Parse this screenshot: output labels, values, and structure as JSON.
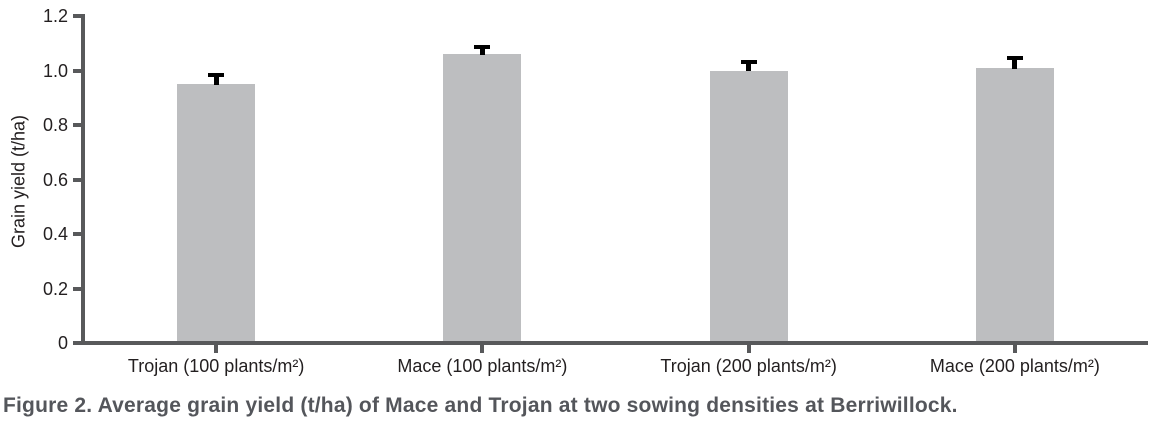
{
  "chart_data": {
    "type": "bar",
    "categories": [
      "Trojan (100 plants/m²)",
      "Mace (100 plants/m²)",
      "Trojan (200 plants/m²)",
      "Mace (200 plants/m²)"
    ],
    "values": [
      0.95,
      1.06,
      1.0,
      1.01
    ],
    "error_up": [
      0.04,
      0.035,
      0.04,
      0.045
    ],
    "title": "",
    "xlabel": "",
    "ylabel": "Grain yield (t/ha)",
    "ylim": [
      0,
      1.2
    ],
    "yticks": [
      0,
      0.2,
      0.4,
      0.6,
      0.8,
      1.0,
      1.2
    ],
    "ytick_labels": [
      "0",
      "0.2",
      "0.4",
      "0.6",
      "0.8",
      "1.0",
      "1.2"
    ],
    "grid": false,
    "legend": "none",
    "bar_color": "#bdbec0",
    "axis_color": "#58595b",
    "error_color": "#000000",
    "text_color": "#231f20"
  },
  "caption": "Figure 2. Average grain yield (t/ha) of Mace and Trojan at two sowing densities at Berriwillock.",
  "caption_color": "#54565b"
}
